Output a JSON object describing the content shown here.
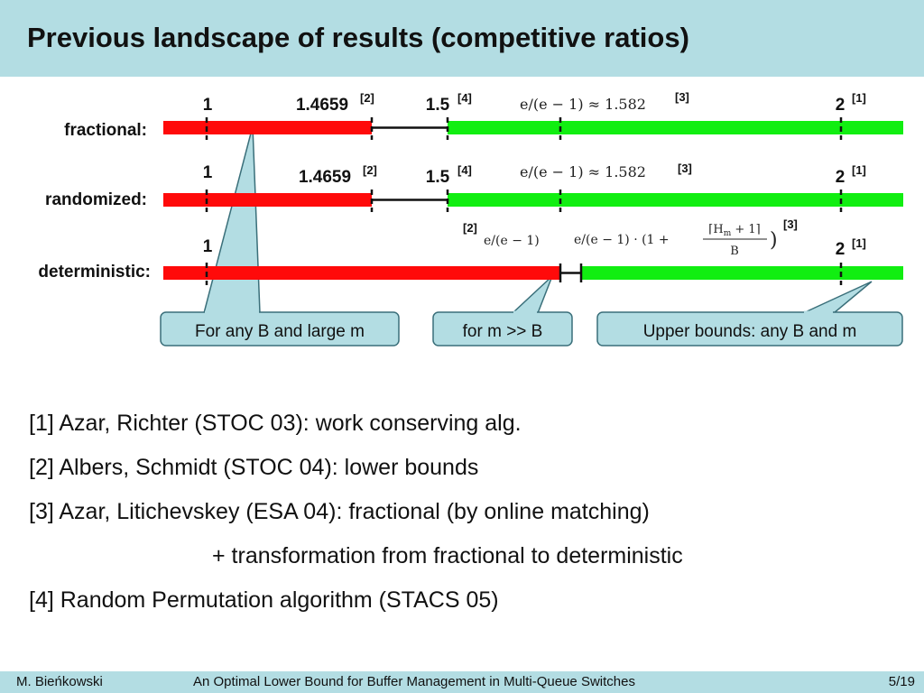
{
  "slide": {
    "title": "Previous landscape of results (competitive ratios)"
  },
  "rows": {
    "fractional": {
      "label": "fractional:",
      "tick_one": "1",
      "lb_value": "1.4659",
      "lb_ref": "[2]",
      "rp_value": "1.5",
      "rp_ref": "[4]",
      "e_expr": "e/(e − 1) ≈ 1.582",
      "e_ref": "[3]",
      "two_value": "2",
      "two_ref": "[1]"
    },
    "randomized": {
      "label": "randomized:",
      "tick_one": "1",
      "lb_value": "1.4659",
      "lb_ref": "[2]",
      "rp_value": "1.5",
      "rp_ref": "[4]",
      "e_expr": "e/(e − 1) ≈ 1.582",
      "e_ref": "[3]",
      "two_value": "2",
      "two_ref": "[1]"
    },
    "deterministic": {
      "label": "deterministic:",
      "tick_one": "1",
      "lb_ref": "[2]",
      "lb_expr": "e/(e − 1)",
      "ub_expr_prefix": "e/(e − 1) · (1 + ",
      "ub_expr_num": "⌈H",
      "ub_expr_sub": "m",
      "ub_expr_num_tail": " + 1⌉",
      "ub_expr_den": "B",
      "ub_expr_suffix": ")",
      "ub_ref": "[3]",
      "two_value": "2",
      "two_ref": "[1]"
    }
  },
  "callouts": {
    "any_b_large_m": "For any B and large m",
    "m_gg_b": "for m >> B",
    "upper_bounds": "Upper bounds: any B and m"
  },
  "references": [
    "[1] Azar, Richter (STOC 03): work conserving alg.",
    "[2] Albers, Schmidt (STOC 04): lower bounds",
    "[3] Azar, Litichevskey (ESA 04): fractional (by online matching)",
    "+ transformation from fractional to deterministic",
    "[4] Random Permutation algorithm (STACS 05)"
  ],
  "footer": {
    "author": "M. Bieńkowski",
    "talk_title": "An Optimal Lower Bound for Buffer Management in Multi-Queue Switches",
    "page": "5/19"
  },
  "colors": {
    "title_bar": "#b3dde3",
    "lower_bound_bar": "#ff0a0a",
    "upper_bound_bar": "#11ee11",
    "callout_fill": "#b3dde3"
  }
}
